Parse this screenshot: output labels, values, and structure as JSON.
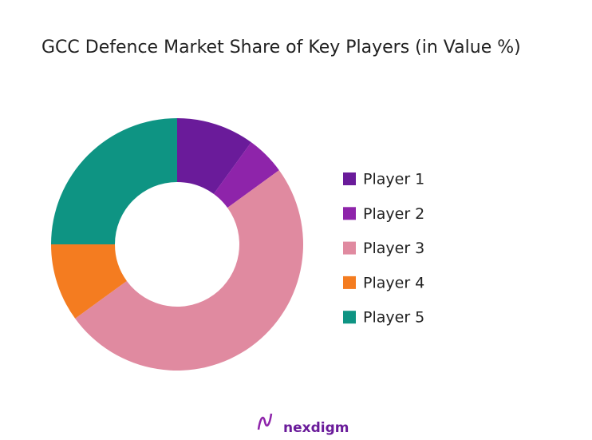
{
  "chart_data": {
    "type": "donut",
    "title": "GCC Defence Market Share of Key Players (in Value %)",
    "categories": [
      "Player 1",
      "Player 2",
      "Player 3",
      "Player 4",
      "Player 5"
    ],
    "values": [
      10,
      5,
      50,
      10,
      25
    ],
    "colors": [
      "#6a1b9a",
      "#8e24aa",
      "#e08aa0",
      "#f47c20",
      "#0e9483"
    ],
    "legend": "right"
  },
  "footer": {
    "logo_text": "nexdigm"
  }
}
